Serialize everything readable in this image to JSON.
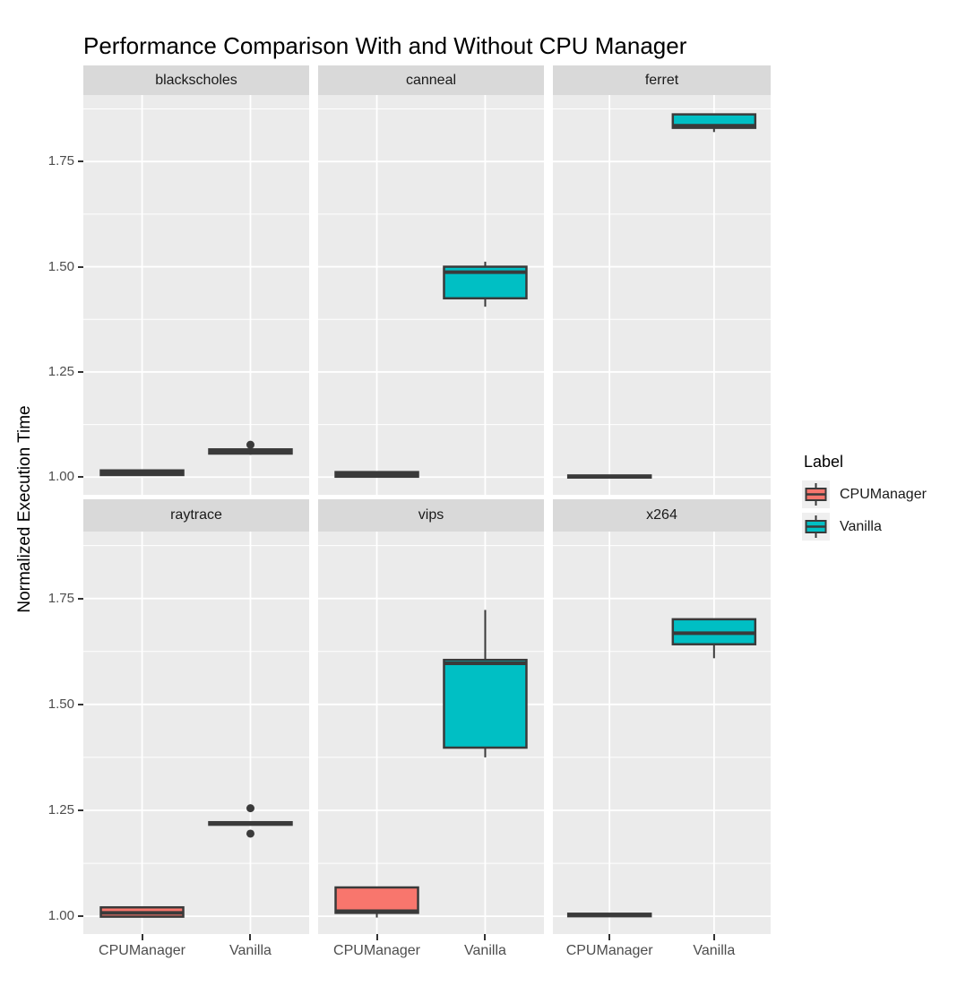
{
  "chart_data": {
    "type": "boxplot",
    "title": "Performance Comparison With and Without CPU Manager",
    "xlabel": "",
    "ylabel": "Normalized Execution Time",
    "categories": [
      "CPUManager",
      "Vanilla"
    ],
    "y_ticks": [
      1.0,
      1.25,
      1.5,
      1.75
    ],
    "y_tick_labels": [
      "1.00",
      "1.25",
      "1.50",
      "1.75"
    ],
    "y_minor_ticks": [
      1.125,
      1.375,
      1.625,
      1.875
    ],
    "ylim": [
      0.958,
      1.908
    ],
    "grid": true,
    "legend": {
      "title": "Label",
      "position": "right",
      "entries": [
        {
          "label": "CPUManager",
          "color": "#F8766D"
        },
        {
          "label": "Vanilla",
          "color": "#00BFC4"
        }
      ]
    },
    "facets": [
      {
        "name": "blackscholes",
        "boxes": [
          {
            "group": "CPUManager",
            "color": "#F8766D",
            "whisker_low": 1.004,
            "q1": 1.005,
            "median": 1.01,
            "q3": 1.016,
            "whisker_high": 1.017,
            "outliers": []
          },
          {
            "group": "Vanilla",
            "color": "#00BFC4",
            "whisker_low": 1.053,
            "q1": 1.056,
            "median": 1.061,
            "q3": 1.066,
            "whisker_high": 1.068,
            "outliers": [
              1.077
            ]
          }
        ]
      },
      {
        "name": "canneal",
        "boxes": [
          {
            "group": "CPUManager",
            "color": "#F8766D",
            "whisker_low": 1.0,
            "q1": 1.001,
            "median": 1.006,
            "q3": 1.012,
            "whisker_high": 1.013,
            "outliers": []
          },
          {
            "group": "Vanilla",
            "color": "#00BFC4",
            "whisker_low": 1.405,
            "q1": 1.425,
            "median": 1.487,
            "q3": 1.5,
            "whisker_high": 1.512,
            "outliers": []
          }
        ]
      },
      {
        "name": "ferret",
        "boxes": [
          {
            "group": "CPUManager",
            "color": "#F8766D",
            "whisker_low": 0.998,
            "q1": 0.999,
            "median": 1.001,
            "q3": 1.004,
            "whisker_high": 1.005,
            "outliers": []
          },
          {
            "group": "Vanilla",
            "color": "#00BFC4",
            "whisker_low": 1.82,
            "q1": 1.83,
            "median": 1.835,
            "q3": 1.862,
            "whisker_high": 1.863,
            "outliers": []
          }
        ]
      },
      {
        "name": "raytrace",
        "boxes": [
          {
            "group": "CPUManager",
            "color": "#F8766D",
            "whisker_low": 0.998,
            "q1": 0.999,
            "median": 1.008,
            "q3": 1.021,
            "whisker_high": 1.022,
            "outliers": []
          },
          {
            "group": "Vanilla",
            "color": "#00BFC4",
            "whisker_low": 1.215,
            "q1": 1.216,
            "median": 1.219,
            "q3": 1.222,
            "whisker_high": 1.223,
            "outliers": [
              1.255,
              1.195
            ]
          }
        ]
      },
      {
        "name": "vips",
        "boxes": [
          {
            "group": "CPUManager",
            "color": "#F8766D",
            "whisker_low": 0.997,
            "q1": 1.008,
            "median": 1.012,
            "q3": 1.068,
            "whisker_high": 1.069,
            "outliers": []
          },
          {
            "group": "Vanilla",
            "color": "#00BFC4",
            "whisker_low": 1.375,
            "q1": 1.398,
            "median": 1.597,
            "q3": 1.605,
            "whisker_high": 1.723,
            "outliers": []
          }
        ]
      },
      {
        "name": "x264",
        "boxes": [
          {
            "group": "CPUManager",
            "color": "#F8766D",
            "whisker_low": 0.999,
            "q1": 1.0,
            "median": 1.003,
            "q3": 1.006,
            "whisker_high": 1.007,
            "outliers": []
          },
          {
            "group": "Vanilla",
            "color": "#00BFC4",
            "whisker_low": 1.609,
            "q1": 1.642,
            "median": 1.668,
            "q3": 1.701,
            "whisker_high": 1.702,
            "outliers": []
          }
        ]
      }
    ],
    "style": {
      "panel_bg": "#EBEBEB",
      "strip_bg": "#D9D9D9",
      "grid_color": "#FFFFFF",
      "box_border": "#3A3A3A",
      "outlier_color": "#3A3A3A",
      "axis_text_color": "#4D4D4D",
      "title_color": "#000000"
    }
  }
}
